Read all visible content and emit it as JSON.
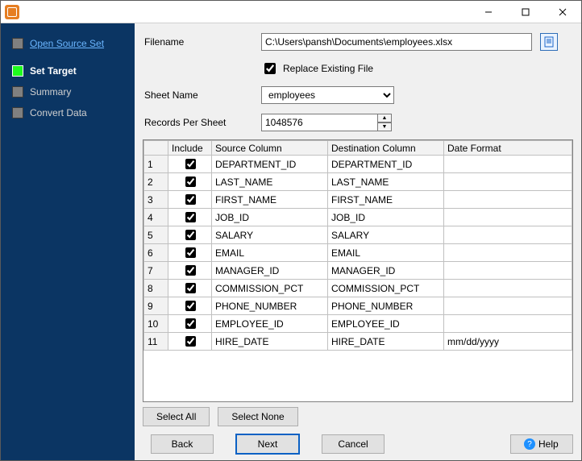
{
  "titlebar": {
    "min_tip": "Minimize",
    "max_tip": "Maximize",
    "close_tip": "Close"
  },
  "sidebar": {
    "items": [
      {
        "label": "Open Source Set",
        "active": false,
        "link": true
      },
      {
        "label": "Set Target",
        "active": true,
        "link": false
      },
      {
        "label": "Summary",
        "active": false,
        "link": false
      },
      {
        "label": "Convert Data",
        "active": false,
        "link": false
      }
    ]
  },
  "form": {
    "filename_label": "Filename",
    "filename_value": "C:\\Users\\pansh\\Documents\\employees.xlsx",
    "browse_icon": "document-icon",
    "replace_label": "Replace Existing File",
    "replace_checked": true,
    "sheet_label": "Sheet Name",
    "sheet_value": "employees",
    "records_label": "Records Per Sheet",
    "records_value": "1048576"
  },
  "columns_table": {
    "headers": {
      "row": "",
      "include": "Include",
      "source": "Source Column",
      "destination": "Destination Column",
      "date_format": "Date Format"
    },
    "rows": [
      {
        "n": "1",
        "include": true,
        "source": "DEPARTMENT_ID",
        "dest": "DEPARTMENT_ID",
        "date": ""
      },
      {
        "n": "2",
        "include": true,
        "source": "LAST_NAME",
        "dest": "LAST_NAME",
        "date": ""
      },
      {
        "n": "3",
        "include": true,
        "source": "FIRST_NAME",
        "dest": "FIRST_NAME",
        "date": ""
      },
      {
        "n": "4",
        "include": true,
        "source": "JOB_ID",
        "dest": "JOB_ID",
        "date": ""
      },
      {
        "n": "5",
        "include": true,
        "source": "SALARY",
        "dest": "SALARY",
        "date": ""
      },
      {
        "n": "6",
        "include": true,
        "source": "EMAIL",
        "dest": "EMAIL",
        "date": ""
      },
      {
        "n": "7",
        "include": true,
        "source": "MANAGER_ID",
        "dest": "MANAGER_ID",
        "date": ""
      },
      {
        "n": "8",
        "include": true,
        "source": "COMMISSION_PCT",
        "dest": "COMMISSION_PCT",
        "date": ""
      },
      {
        "n": "9",
        "include": true,
        "source": "PHONE_NUMBER",
        "dest": "PHONE_NUMBER",
        "date": ""
      },
      {
        "n": "10",
        "include": true,
        "source": "EMPLOYEE_ID",
        "dest": "EMPLOYEE_ID",
        "date": ""
      },
      {
        "n": "11",
        "include": true,
        "source": "HIRE_DATE",
        "dest": "HIRE_DATE",
        "date": "mm/dd/yyyy"
      }
    ]
  },
  "buttons": {
    "select_all": "Select All",
    "select_none": "Select None",
    "back": "Back",
    "next": "Next",
    "cancel": "Cancel",
    "help": "Help"
  }
}
